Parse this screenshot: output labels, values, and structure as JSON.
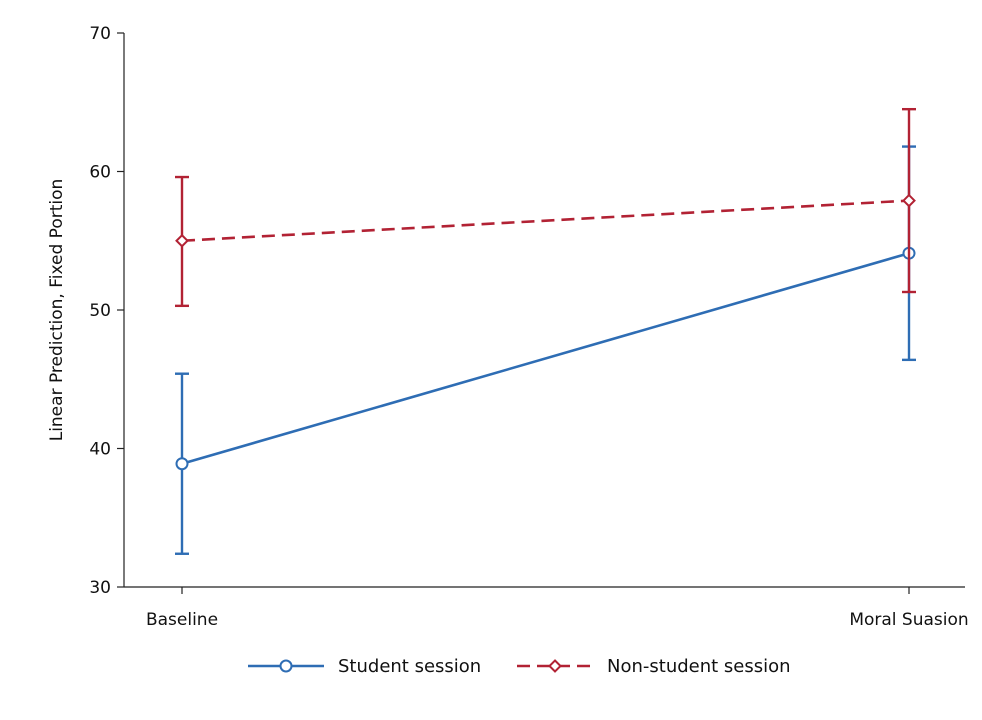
{
  "chart_data": {
    "type": "line",
    "title": "",
    "xlabel": "",
    "ylabel": "Linear Prediction, Fixed Portion",
    "categories": [
      "Baseline",
      "Moral Suasion"
    ],
    "ylim": [
      30,
      70
    ],
    "yticks": [
      "30",
      "40",
      "50",
      "60",
      "70"
    ],
    "grid": false,
    "legend_position": "bottom",
    "series": [
      {
        "name": "Student session",
        "color": "#2e6db4",
        "line_style": "solid",
        "marker": "circle",
        "values": [
          38.9,
          54.1
        ],
        "ci_low": [
          32.4,
          46.4
        ],
        "ci_high": [
          45.4,
          61.8
        ]
      },
      {
        "name": "Non-student session",
        "color": "#b22234",
        "line_style": "dashed",
        "marker": "diamond",
        "values": [
          55.0,
          57.9
        ],
        "ci_low": [
          50.3,
          51.3
        ],
        "ci_high": [
          59.6,
          64.5
        ]
      }
    ]
  }
}
